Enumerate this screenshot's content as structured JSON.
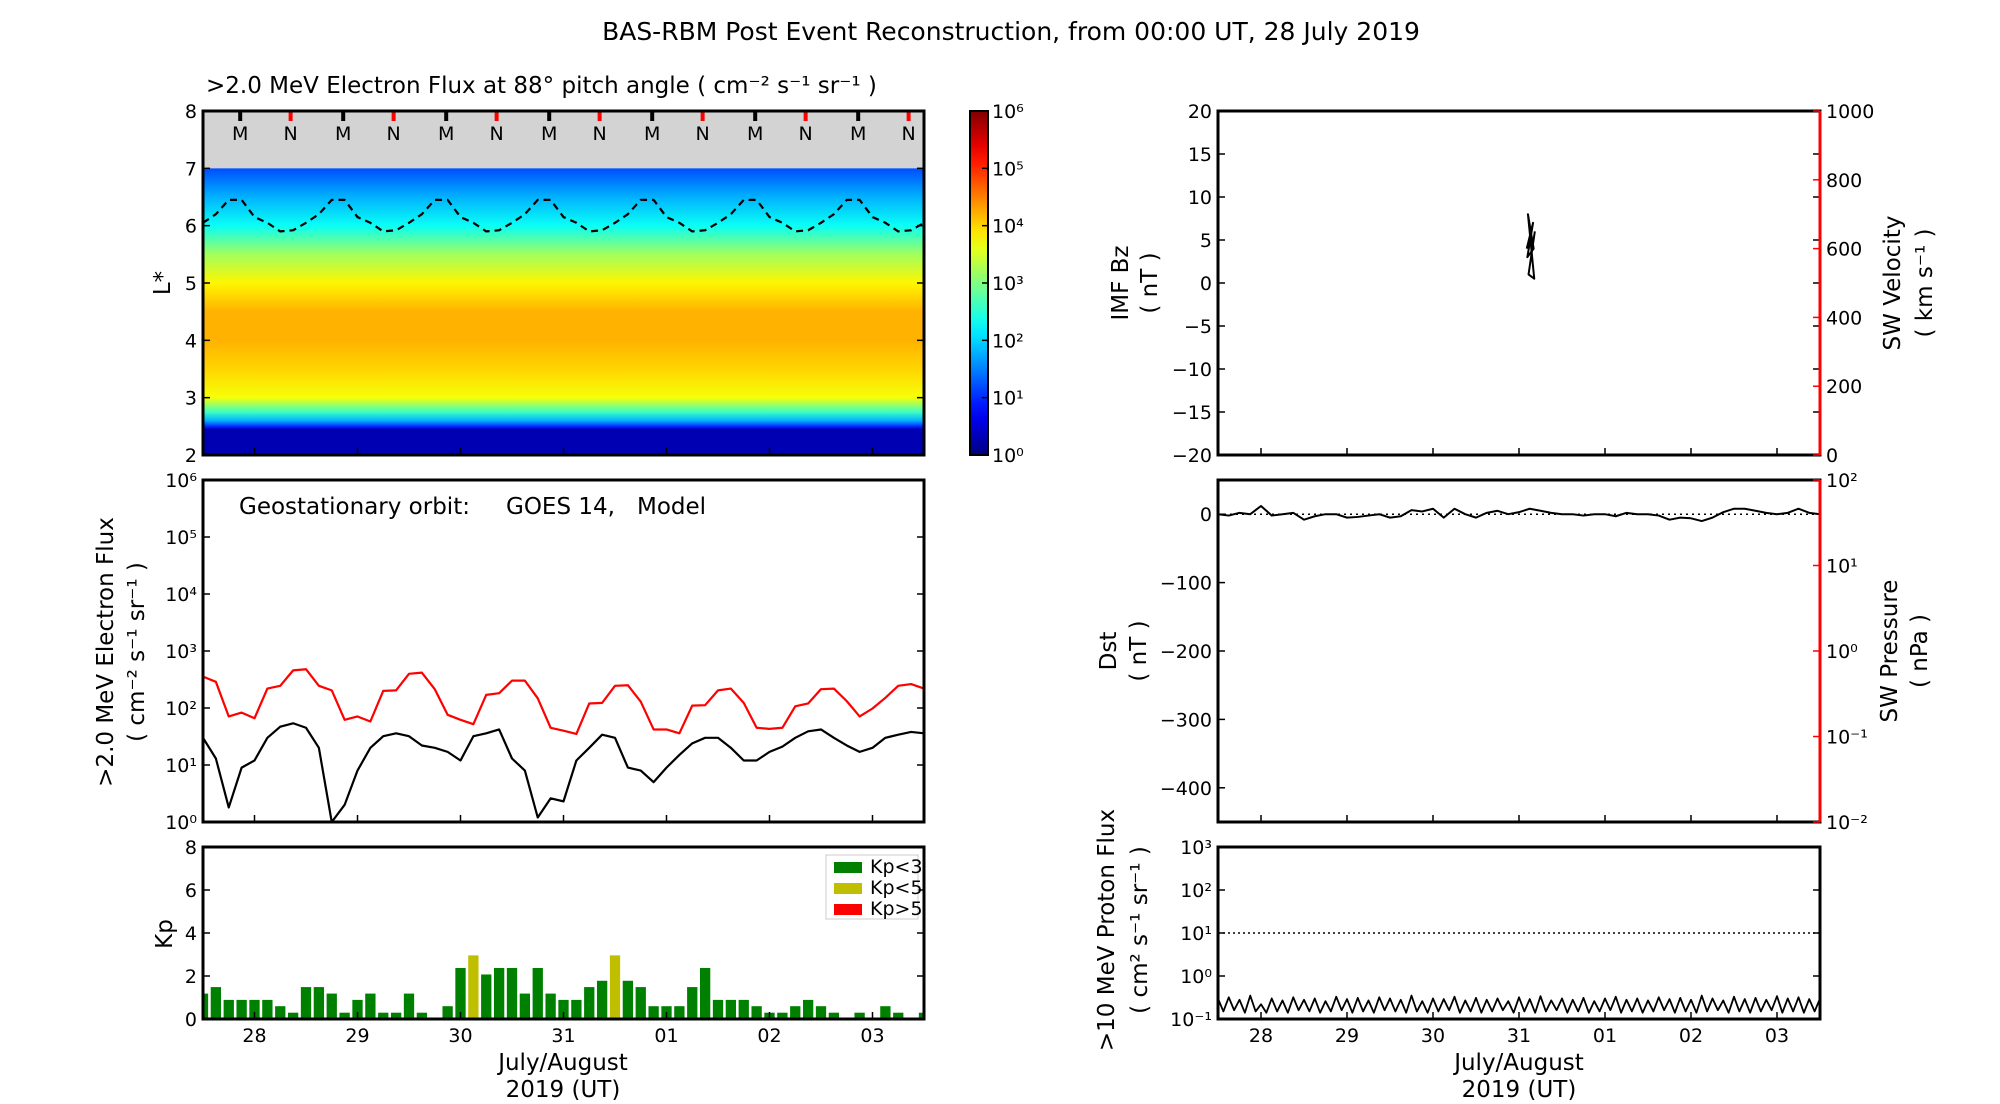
{
  "title": "BAS-RBM Post Event Reconstruction, from 00:00 UT, 28 July 2019",
  "x_axis": {
    "range": [
      "2019-07-27T12:00Z",
      "2019-08-03T12:00Z"
    ],
    "tick_labels": [
      "28",
      "29",
      "30",
      "31",
      "01",
      "02",
      "03"
    ],
    "label_line1": "July/August",
    "label_line2": "2019 (UT)"
  },
  "chart_data": [
    {
      "id": "lstar",
      "type": "heatmap",
      "title": ">2.0 MeV Electron Flux at 88° pitch angle ( cm⁻² s⁻¹ sr⁻¹ )",
      "ylabel": "L*",
      "ylim": [
        2,
        8
      ],
      "yticks": [
        "2",
        "3",
        "4",
        "5",
        "6",
        "7",
        "8"
      ],
      "no_data_above_L": 7,
      "no_data_color": "#d3d3d3",
      "colormap": "jet",
      "clim": [
        1,
        1000000
      ],
      "colorbar_ticks": [
        "10⁰",
        "10¹",
        "10²",
        "10³",
        "10⁴",
        "10⁵",
        "10⁶"
      ],
      "profile": {
        "L": [
          2,
          2.45,
          2.5,
          2.6,
          2.75,
          3,
          3.5,
          4,
          4.5,
          5,
          5.5,
          6,
          6.5,
          7
        ],
        "flux": [
          2,
          2,
          10,
          63,
          398,
          5012,
          10000,
          15849,
          15849,
          6310,
          1585,
          200,
          63,
          16
        ]
      },
      "dashed_line": {
        "start": "2019-07-27T12:00Z",
        "step_hours": 3,
        "L": [
          6.05,
          6.2,
          6.45,
          6.45,
          6.15,
          6.05,
          5.9,
          5.92,
          6.05,
          6.2,
          6.45,
          6.45,
          6.15,
          6.05,
          5.9,
          5.92,
          6.05,
          6.2,
          6.45,
          6.45,
          6.15,
          6.05,
          5.9,
          5.92,
          6.05,
          6.2,
          6.45,
          6.45,
          6.15,
          6.05,
          5.9,
          5.92,
          6.05,
          6.2,
          6.45,
          6.45,
          6.15,
          6.05,
          5.9,
          5.92,
          6.05,
          6.2,
          6.45,
          6.45,
          6.15,
          6.05,
          5.9,
          5.92,
          6.05,
          6.2,
          6.45,
          6.45,
          6.15,
          6.05,
          5.9,
          5.92,
          6.05
        ]
      },
      "markers": [
        {
          "label": "M",
          "color": "#000000",
          "times": [
            "2019-07-27T20:40Z",
            "2019-07-28T20:40Z",
            "2019-07-29T20:40Z",
            "2019-07-30T20:40Z",
            "2019-07-31T20:40Z",
            "2019-08-01T20:40Z",
            "2019-08-02T20:40Z"
          ]
        },
        {
          "label": "N",
          "color": "#ff0000",
          "times": [
            "2019-07-28T08:25Z",
            "2019-07-29T08:25Z",
            "2019-07-30T08:25Z",
            "2019-07-31T08:25Z",
            "2019-08-01T08:25Z",
            "2019-08-02T08:25Z",
            "2019-08-03T08:25Z"
          ]
        }
      ]
    },
    {
      "id": "geo",
      "type": "line",
      "annotation": {
        "prefix": "Geostationary orbit:",
        "satellite": "GOES 14,",
        "model": "Model"
      },
      "ylabel_line1": ">2.0 MeV Electron Flux",
      "ylabel_line2": "( cm⁻² s⁻¹ sr⁻¹ )",
      "yscale": "log",
      "ylim": [
        1,
        1000000
      ],
      "yticks": [
        "10⁰",
        "10¹",
        "10²",
        "10³",
        "10⁴",
        "10⁵",
        "10⁶"
      ],
      "series": [
        {
          "name": "GOES 14",
          "color": "#000000",
          "start": "2019-07-27T12:00Z",
          "step_hours": 3,
          "values": [
            30,
            13,
            1.8,
            9,
            12,
            30,
            47,
            54,
            45,
            20,
            1,
            2,
            8,
            20,
            32,
            36,
            32,
            22,
            20,
            17,
            12,
            32,
            36,
            42,
            13,
            8,
            1.2,
            2.6,
            2.3,
            12,
            20,
            34,
            30,
            9,
            8,
            5,
            9,
            15,
            24,
            30,
            30,
            20,
            12,
            12,
            17,
            21,
            30,
            39,
            42,
            30,
            22,
            17,
            20,
            30,
            34,
            38,
            36
          ]
        },
        {
          "name": "Model",
          "color": "#ff0000",
          "start": "2019-07-27T12:00Z",
          "step_hours": 3,
          "values": [
            355,
            288,
            71,
            83,
            66,
            219,
            245,
            457,
            479,
            245,
            204,
            62,
            71,
            58,
            200,
            204,
            398,
            417,
            214,
            76,
            62,
            52,
            170,
            182,
            302,
            302,
            148,
            45,
            40,
            35,
            120,
            123,
            245,
            251,
            129,
            42,
            42,
            36,
            110,
            112,
            204,
            219,
            123,
            45,
            43,
            45,
            107,
            120,
            214,
            219,
            132,
            71,
            98,
            151,
            245,
            263,
            219
          ]
        }
      ]
    },
    {
      "id": "kp",
      "type": "bar",
      "ylabel": "Kp",
      "ylim": [
        0,
        9
      ],
      "yticks": [
        "0",
        "2",
        "4",
        "6",
        "8"
      ],
      "start": "2019-07-27T12:00Z",
      "step_hours": 3,
      "values": [
        1.33,
        1.67,
        1,
        1,
        1,
        1,
        0.67,
        0.33,
        1.67,
        1.67,
        1.33,
        0.33,
        1,
        1.33,
        0.33,
        0.33,
        1.33,
        0.33,
        0,
        0.67,
        2.67,
        3.33,
        2.33,
        2.67,
        2.67,
        1.33,
        2.67,
        1.33,
        1,
        1,
        1.67,
        2,
        3.33,
        2,
        1.67,
        0.67,
        0.67,
        0.67,
        1.67,
        2.67,
        1,
        1,
        1,
        0.67,
        0.33,
        0.33,
        0.67,
        1,
        0.67,
        0.33,
        0,
        0.33,
        0,
        0.67,
        0.33,
        0,
        0.33
      ],
      "legend": [
        {
          "label": "Kp<3",
          "color": "#008000"
        },
        {
          "label": "Kp<5",
          "color": "#bfbf00"
        },
        {
          "label": "Kp>5",
          "color": "#ff0000"
        }
      ],
      "legend_position": "top-right"
    },
    {
      "id": "imf",
      "type": "line",
      "ylabel_line1": "IMF Bz",
      "ylabel_line2": "( nT )",
      "ylim": [
        -20,
        20
      ],
      "yticks": [
        "−20",
        "−15",
        "−10",
        "−5",
        "0",
        "5",
        "10",
        "15",
        "20"
      ],
      "y2label_line1": "SW Velocity",
      "y2label_line2": "( km s⁻¹ )",
      "y2lim": [
        0,
        1000
      ],
      "y2ticks": [
        "0",
        "200",
        "400",
        "600",
        "800",
        "1000"
      ],
      "y2color": "#ff0000",
      "series": [
        {
          "name": "IMF Bz",
          "color": "#000000",
          "times": [
            "2019-07-31T03:00Z",
            "2019-07-31T03:05Z",
            "2019-07-31T03:10Z",
            "2019-07-31T03:15Z",
            "2019-07-31T03:20Z",
            "2019-07-31T03:25Z",
            "2019-07-31T03:30Z",
            "2019-07-31T03:35Z"
          ],
          "values": [
            4,
            7,
            3,
            4,
            8,
            0.5,
            1,
            6
          ]
        }
      ]
    },
    {
      "id": "dst",
      "type": "line",
      "ylabel_line1": "Dst",
      "ylabel_line2": "( nT )",
      "ylim": [
        -450,
        50
      ],
      "yticks": [
        "−400",
        "−300",
        "−200",
        "−100",
        "0"
      ],
      "y2label_line1": "SW Pressure",
      "y2label_line2": "( nPa )",
      "y2scale": "log",
      "y2lim": [
        0.01,
        100
      ],
      "y2ticks": [
        "10⁻²",
        "10⁻¹",
        "10⁰",
        "10¹",
        "10²"
      ],
      "y2color": "#ff0000",
      "reference_line": 0,
      "series": [
        {
          "name": "Dst",
          "color": "#000000",
          "start": "2019-07-27T12:00Z",
          "step_hours": 3,
          "values": [
            0,
            -2,
            2,
            0,
            12,
            -2,
            0,
            2,
            -8,
            -3,
            0,
            0,
            -5,
            -4,
            -2,
            0,
            -5,
            -3,
            6,
            4,
            8,
            -5,
            8,
            0,
            -5,
            2,
            5,
            0,
            3,
            8,
            5,
            2,
            0,
            0,
            -2,
            0,
            0,
            -3,
            2,
            0,
            0,
            -2,
            -8,
            -5,
            -6,
            -10,
            -5,
            3,
            8,
            8,
            5,
            2,
            0,
            2,
            8,
            2,
            0
          ]
        }
      ]
    },
    {
      "id": "proton",
      "type": "line",
      "ylabel_line1": ">10 MeV Proton Flux",
      "ylabel_line2": "( cm² s⁻¹ sr⁻¹ )",
      "yscale": "log",
      "ylim": [
        0.1,
        1000
      ],
      "yticks": [
        "10⁻¹",
        "10⁰",
        "10¹",
        "10²",
        "10³"
      ],
      "reference_line": 10,
      "series": [
        {
          "name": "Proton flux",
          "color": "#000000",
          "start": "2019-07-27T12:00Z",
          "step_hours": 1.5,
          "values": [
            0.3,
            0.15,
            0.32,
            0.16,
            0.28,
            0.14,
            0.35,
            0.15,
            0.22,
            0.14,
            0.3,
            0.15,
            0.27,
            0.14,
            0.32,
            0.16,
            0.28,
            0.15,
            0.3,
            0.14,
            0.26,
            0.15,
            0.33,
            0.16,
            0.29,
            0.14,
            0.31,
            0.15,
            0.27,
            0.14,
            0.32,
            0.16,
            0.3,
            0.15,
            0.28,
            0.14,
            0.35,
            0.15,
            0.26,
            0.14,
            0.3,
            0.15,
            0.29,
            0.16,
            0.33,
            0.14,
            0.27,
            0.15,
            0.31,
            0.14,
            0.28,
            0.15,
            0.3,
            0.16,
            0.26,
            0.14,
            0.32,
            0.15,
            0.29,
            0.14,
            0.34,
            0.15,
            0.27,
            0.16,
            0.3,
            0.14,
            0.28,
            0.15,
            0.31,
            0.14,
            0.26,
            0.15,
            0.3,
            0.16,
            0.33,
            0.14,
            0.28,
            0.15,
            0.3,
            0.14,
            0.27,
            0.15,
            0.32,
            0.16,
            0.29,
            0.14,
            0.31,
            0.15,
            0.28,
            0.14,
            0.35,
            0.15,
            0.3,
            0.16,
            0.27,
            0.14,
            0.33,
            0.15,
            0.29,
            0.14,
            0.31,
            0.15,
            0.28,
            0.16,
            0.34,
            0.14,
            0.3,
            0.15,
            0.32,
            0.14,
            0.29,
            0.15,
            0.3
          ]
        }
      ]
    }
  ]
}
